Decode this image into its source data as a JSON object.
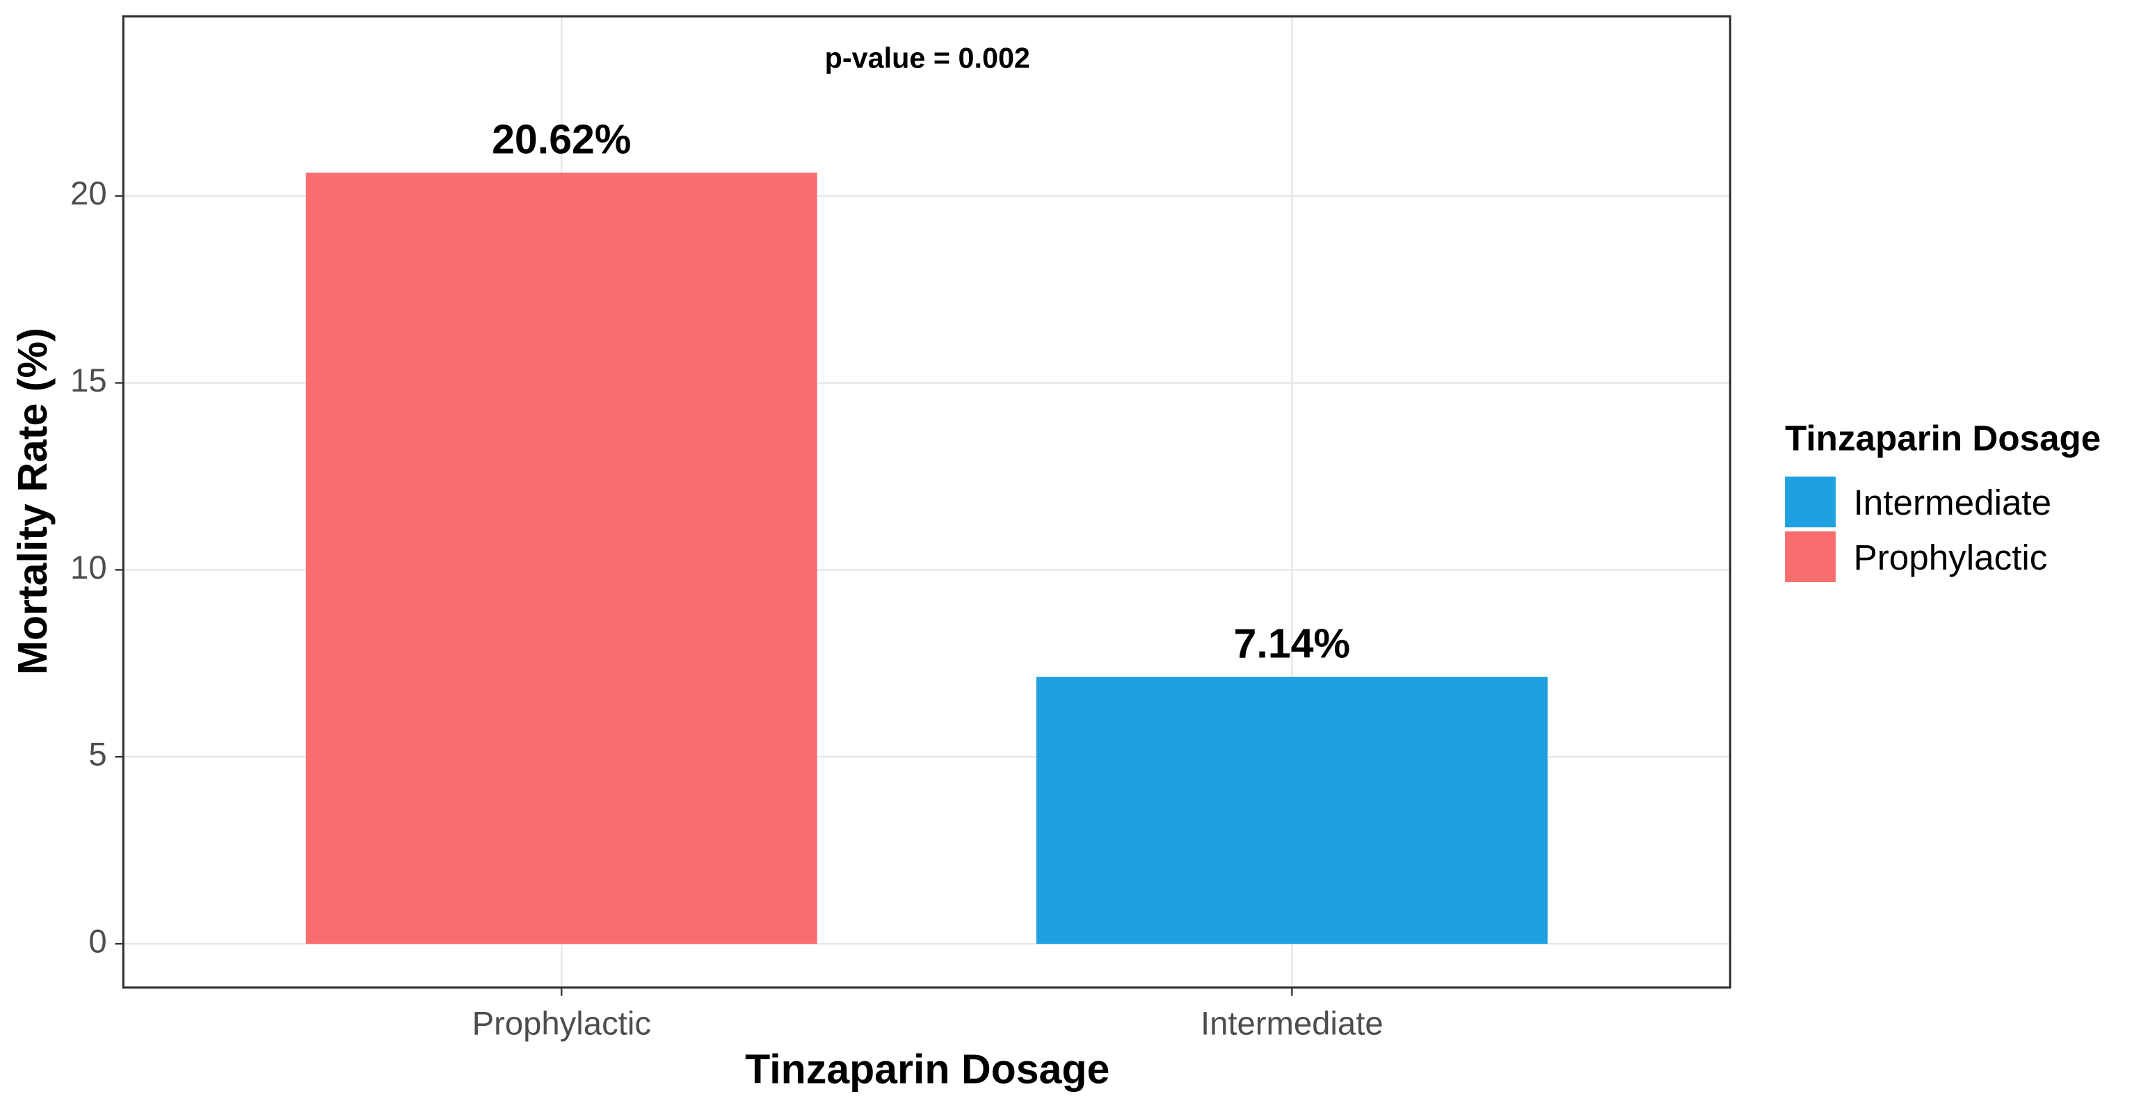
{
  "chart_data": {
    "type": "bar",
    "annotation": "p-value = 0.002",
    "x_label": "Tinzaparin Dosage",
    "y_label": "Mortality Rate (%)",
    "categories": [
      "Prophylactic",
      "Intermediate"
    ],
    "values": [
      20.62,
      7.14
    ],
    "value_labels": [
      "20.62%",
      "7.14%"
    ],
    "colors": [
      "#f86e6e",
      "#1fa0e1"
    ],
    "ylim": [
      -1.17,
      24.8
    ],
    "yticks": [
      0,
      5,
      10,
      15,
      20
    ],
    "grid": true,
    "legend": {
      "title": "Tinzaparin Dosage",
      "position": "right",
      "items": [
        {
          "name": "Intermediate",
          "color": "#1fa0e1"
        },
        {
          "name": "Prophylactic",
          "color": "#f86e6e"
        }
      ]
    }
  }
}
